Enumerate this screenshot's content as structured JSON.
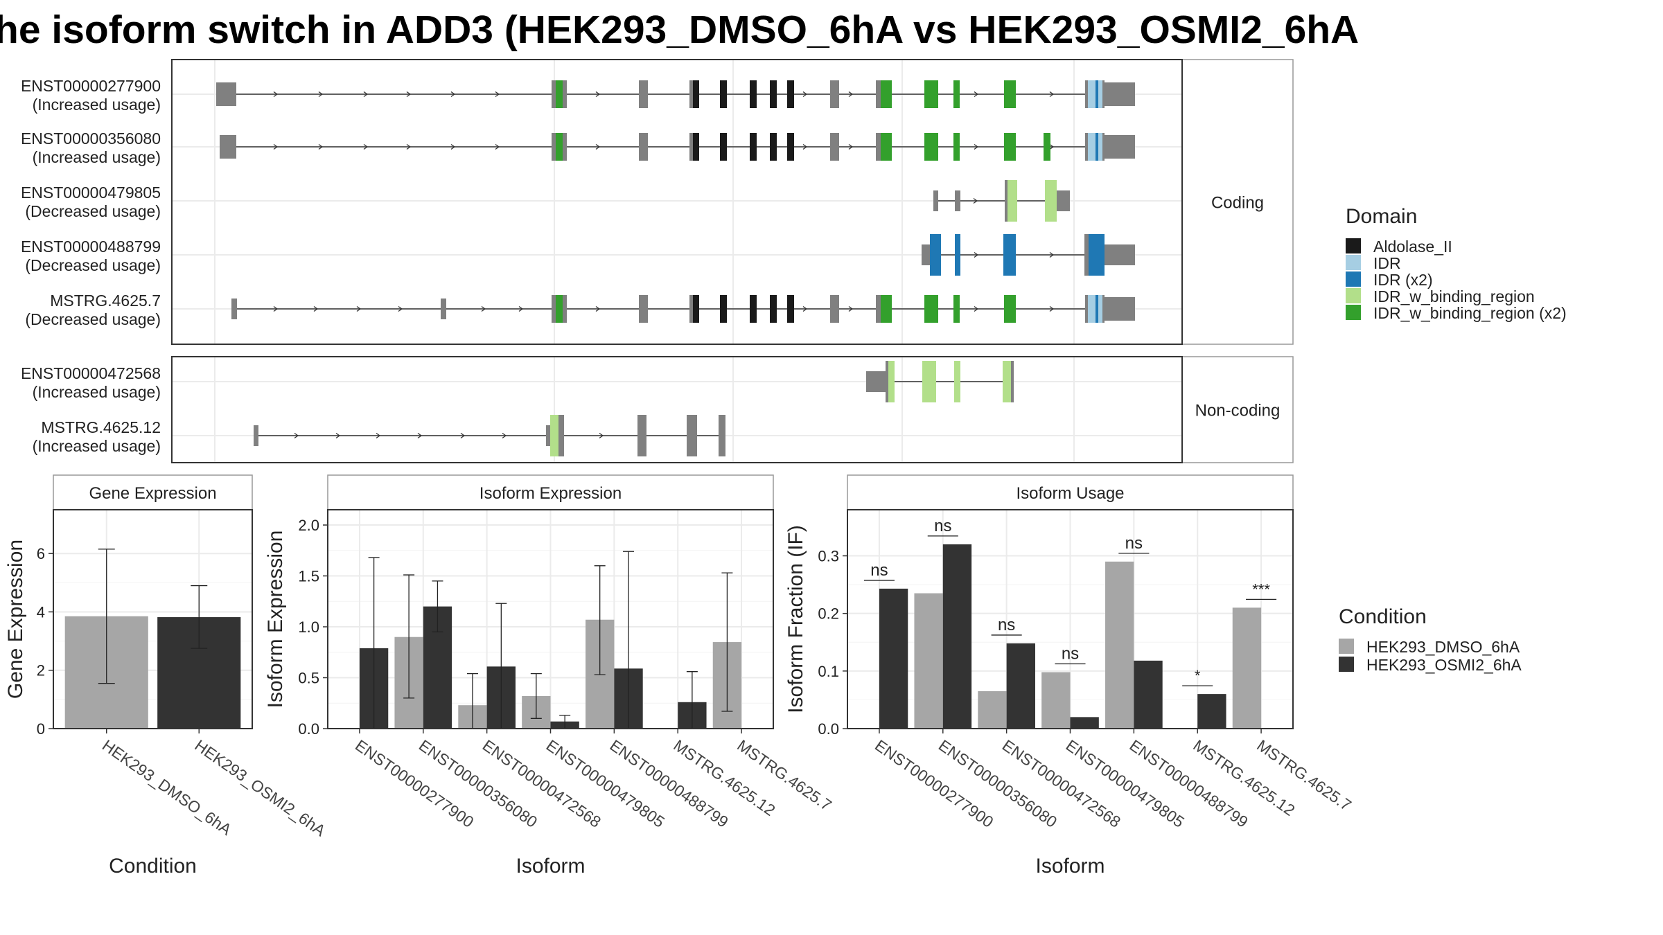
{
  "title": "he isoform switch in ADD3 (HEK293_DMSO_6hA vs HEK293_OSMI2_6hA",
  "colors": {
    "exon": "#808080",
    "intron": "#333333",
    "cond_dmso": "#a6a6a6",
    "cond_osmi2": "#333333",
    "Aldolase_II": "#1a1a1a",
    "IDR": "#a6cee3",
    "IDR (x2)": "#1f78b4",
    "IDR_w_binding_region": "#b2df8a",
    "IDR_w_binding_region (x2)": "#33a02c"
  },
  "structure": {
    "facets": [
      {
        "label": "Coding",
        "transcripts": [
          {
            "id": "ENST00000277900",
            "usage": "(Increased usage)"
          },
          {
            "id": "ENST00000356080",
            "usage": "(Increased usage)"
          },
          {
            "id": "ENST00000479805",
            "usage": "(Decreased usage)"
          },
          {
            "id": "ENST00000488799",
            "usage": "(Decreased usage)"
          },
          {
            "id": "MSTRG.4625.7",
            "usage": "(Decreased usage)"
          }
        ]
      },
      {
        "label": "Non-coding",
        "transcripts": [
          {
            "id": "ENST00000472568",
            "usage": "(Increased usage)"
          },
          {
            "id": "MSTRG.4625.12",
            "usage": "(Increased usage)"
          }
        ]
      }
    ],
    "domain_legend": {
      "title": "Domain",
      "items": [
        "Aldolase_II",
        "IDR",
        "IDR (x2)",
        "IDR_w_binding_region",
        "IDR_w_binding_region (x2)"
      ]
    }
  },
  "chart_data": [
    {
      "type": "bar",
      "title": "Gene Expression",
      "xlabel": "Condition",
      "ylabel": "Gene Expression",
      "ylim": [
        0,
        7.5
      ],
      "yticks": [
        0,
        2,
        4,
        6
      ],
      "categories": [
        "HEK293_DMSO_6hA",
        "HEK293_OSMI2_6hA"
      ],
      "values": [
        3.85,
        3.82
      ],
      "error_low": [
        1.55,
        2.75
      ],
      "error_high": [
        6.15,
        4.9
      ],
      "grid": true
    },
    {
      "type": "bar",
      "title": "Isoform Expression",
      "xlabel": "Isoform",
      "ylabel": "Isoform Expression",
      "ylim": [
        0,
        2.15
      ],
      "yticks": [
        0.0,
        0.5,
        1.0,
        1.5,
        2.0
      ],
      "categories": [
        "ENST00000277900",
        "ENST00000356080",
        "ENST00000472568",
        "ENST00000479805",
        "ENST00000488799",
        "MSTRG.4625.12",
        "MSTRG.4625.7"
      ],
      "series": [
        {
          "name": "HEK293_DMSO_6hA",
          "values": [
            0.0,
            0.9,
            0.23,
            0.32,
            1.07,
            0.0,
            0.85
          ],
          "error_low": [
            0.0,
            0.3,
            0.0,
            0.1,
            0.53,
            0.0,
            0.17
          ],
          "error_high": [
            0.0,
            1.51,
            0.54,
            0.54,
            1.6,
            0.0,
            1.53
          ]
        },
        {
          "name": "HEK293_OSMI2_6hA",
          "values": [
            0.79,
            1.2,
            0.61,
            0.07,
            0.59,
            0.26,
            0.0
          ],
          "error_low": [
            0.0,
            0.95,
            0.0,
            0.0,
            0.0,
            0.0,
            0.0
          ],
          "error_high": [
            1.68,
            1.45,
            1.23,
            0.13,
            1.74,
            0.56,
            0.0
          ]
        }
      ],
      "grid": true
    },
    {
      "type": "bar",
      "title": "Isoform Usage",
      "xlabel": "Isoform",
      "ylabel": "Isoform Fraction (IF)",
      "ylim": [
        0,
        0.38
      ],
      "yticks": [
        0.0,
        0.1,
        0.2,
        0.3
      ],
      "categories": [
        "ENST00000277900",
        "ENST00000356080",
        "ENST00000472568",
        "ENST00000479805",
        "ENST00000488799",
        "MSTRG.4625.12",
        "MSTRG.4625.7"
      ],
      "series": [
        {
          "name": "HEK293_DMSO_6hA",
          "values": [
            0.0,
            0.235,
            0.065,
            0.098,
            0.29,
            0.0,
            0.21
          ]
        },
        {
          "name": "HEK293_OSMI2_6hA",
          "values": [
            0.243,
            0.32,
            0.148,
            0.02,
            0.118,
            0.06,
            0.0
          ]
        }
      ],
      "significance": [
        "ns",
        "ns",
        "ns",
        "ns",
        "ns",
        "*",
        "***"
      ],
      "grid": true
    }
  ],
  "condition_legend": {
    "title": "Condition",
    "items": [
      "HEK293_DMSO_6hA",
      "HEK293_OSMI2_6hA"
    ]
  }
}
